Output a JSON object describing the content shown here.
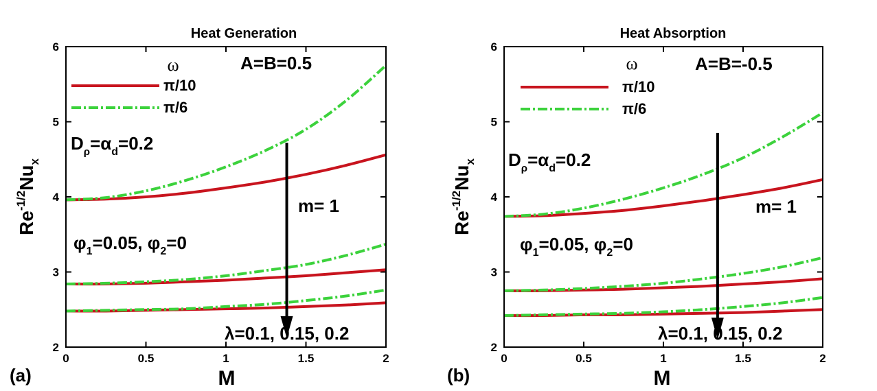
{
  "chart_data": [
    {
      "type": "line",
      "panel_label": "(a)",
      "title": "Heat Generation",
      "xlabel": "M",
      "ylabel": {
        "base": "Re",
        "sup": "-1/2",
        "main": "Nu",
        "sub": "x"
      },
      "xlim": [
        0,
        2
      ],
      "ylim": [
        2,
        6
      ],
      "xticks": [
        0,
        0.5,
        1,
        1.5,
        2
      ],
      "yticks": [
        2,
        3,
        4,
        5,
        6
      ],
      "legend": {
        "title": "ω",
        "entries": [
          {
            "label": "π/10",
            "color": "#c8141e",
            "style": "solid"
          },
          {
            "label": "π/6",
            "color": "#3cd23c",
            "style": "dashdot"
          }
        ]
      },
      "annotations": {
        "AB": "A=B=0.5",
        "D": {
          "D": "D",
          "rho": "ρ",
          "eq": "=",
          "alpha": "α",
          "d": "d",
          "val": "=0.2"
        },
        "m": "m= 1",
        "phi": {
          "p1": "φ",
          "s1": "1",
          "v1": "=0.05, ",
          "p2": "φ",
          "s2": "2",
          "v2": "=0"
        },
        "lambda": "λ=0.1, 0.15, 0.2"
      },
      "arrow": {
        "x": 1.38,
        "y_start": 4.72,
        "y_end": 2.12
      },
      "series": [
        {
          "name": "π/10",
          "lambda": 0.1,
          "x": [
            0,
            0.25,
            0.5,
            0.75,
            1,
            1.25,
            1.5,
            1.75,
            2
          ],
          "values": [
            3.96,
            3.97,
            4.0,
            4.05,
            4.12,
            4.2,
            4.3,
            4.42,
            4.56
          ]
        },
        {
          "name": "π/6",
          "lambda": 0.1,
          "x": [
            0,
            0.25,
            0.5,
            0.75,
            1,
            1.25,
            1.5,
            1.75,
            2
          ],
          "values": [
            3.96,
            3.99,
            4.08,
            4.22,
            4.4,
            4.62,
            4.9,
            5.28,
            5.75
          ]
        },
        {
          "name": "π/10",
          "lambda": 0.15,
          "x": [
            0,
            0.25,
            0.5,
            0.75,
            1,
            1.25,
            1.5,
            1.75,
            2
          ],
          "values": [
            2.84,
            2.84,
            2.85,
            2.87,
            2.89,
            2.92,
            2.95,
            2.99,
            3.03
          ]
        },
        {
          "name": "π/6",
          "lambda": 0.15,
          "x": [
            0,
            0.25,
            0.5,
            0.75,
            1,
            1.25,
            1.5,
            1.75,
            2
          ],
          "values": [
            2.84,
            2.85,
            2.87,
            2.9,
            2.95,
            3.02,
            3.1,
            3.22,
            3.37
          ]
        },
        {
          "name": "π/10",
          "lambda": 0.2,
          "x": [
            0,
            0.25,
            0.5,
            0.75,
            1,
            1.25,
            1.5,
            1.75,
            2
          ],
          "values": [
            2.48,
            2.48,
            2.49,
            2.5,
            2.51,
            2.52,
            2.54,
            2.56,
            2.59
          ]
        },
        {
          "name": "π/6",
          "lambda": 0.2,
          "x": [
            0,
            0.25,
            0.5,
            0.75,
            1,
            1.25,
            1.5,
            1.75,
            2
          ],
          "values": [
            2.48,
            2.49,
            2.5,
            2.51,
            2.54,
            2.57,
            2.62,
            2.68,
            2.76
          ]
        }
      ]
    },
    {
      "type": "line",
      "panel_label": "(b)",
      "title": "Heat Absorption",
      "xlabel": "M",
      "ylabel": {
        "base": "Re",
        "sup": "-1/2",
        "main": "Nu",
        "sub": "x"
      },
      "xlim": [
        0,
        2
      ],
      "ylim": [
        2,
        6
      ],
      "xticks": [
        0,
        0.5,
        1,
        1.5,
        2
      ],
      "yticks": [
        2,
        3,
        4,
        5,
        6
      ],
      "legend": {
        "title": "ω",
        "entries": [
          {
            "label": "π/10",
            "color": "#c8141e",
            "style": "solid"
          },
          {
            "label": "π/6",
            "color": "#3cd23c",
            "style": "dashdot"
          }
        ]
      },
      "annotations": {
        "AB": "A=B=-0.5",
        "D": {
          "D": "D",
          "rho": "ρ",
          "eq": "=",
          "alpha": "α",
          "d": "d",
          "val": "=0.2"
        },
        "m": "m= 1",
        "phi": {
          "p1": "φ",
          "s1": "1",
          "v1": "=0.05, ",
          "p2": "φ",
          "s2": "2",
          "v2": "=0"
        },
        "lambda": "λ=0.1, 0.15, 0.2"
      },
      "arrow": {
        "x": 1.34,
        "y_start": 4.85,
        "y_end": 2.1
      },
      "series": [
        {
          "name": "π/10",
          "lambda": 0.1,
          "x": [
            0,
            0.25,
            0.5,
            0.75,
            1,
            1.25,
            1.5,
            1.75,
            2
          ],
          "values": [
            3.74,
            3.75,
            3.78,
            3.82,
            3.88,
            3.95,
            4.03,
            4.12,
            4.23
          ]
        },
        {
          "name": "π/6",
          "lambda": 0.1,
          "x": [
            0,
            0.25,
            0.5,
            0.75,
            1,
            1.25,
            1.5,
            1.75,
            2
          ],
          "values": [
            3.74,
            3.77,
            3.85,
            3.97,
            4.12,
            4.3,
            4.52,
            4.8,
            5.12
          ]
        },
        {
          "name": "π/10",
          "lambda": 0.15,
          "x": [
            0,
            0.25,
            0.5,
            0.75,
            1,
            1.25,
            1.5,
            1.75,
            2
          ],
          "values": [
            2.75,
            2.75,
            2.76,
            2.77,
            2.79,
            2.81,
            2.84,
            2.87,
            2.91
          ]
        },
        {
          "name": "π/6",
          "lambda": 0.15,
          "x": [
            0,
            0.25,
            0.5,
            0.75,
            1,
            1.25,
            1.5,
            1.75,
            2
          ],
          "values": [
            2.75,
            2.76,
            2.78,
            2.81,
            2.85,
            2.91,
            2.98,
            3.07,
            3.19
          ]
        },
        {
          "name": "π/10",
          "lambda": 0.2,
          "x": [
            0,
            0.25,
            0.5,
            0.75,
            1,
            1.25,
            1.5,
            1.75,
            2
          ],
          "values": [
            2.42,
            2.42,
            2.43,
            2.43,
            2.44,
            2.45,
            2.46,
            2.48,
            2.5
          ]
        },
        {
          "name": "π/6",
          "lambda": 0.2,
          "x": [
            0,
            0.25,
            0.5,
            0.75,
            1,
            1.25,
            1.5,
            1.75,
            2
          ],
          "values": [
            2.42,
            2.43,
            2.44,
            2.45,
            2.47,
            2.5,
            2.54,
            2.59,
            2.66
          ]
        }
      ]
    }
  ]
}
